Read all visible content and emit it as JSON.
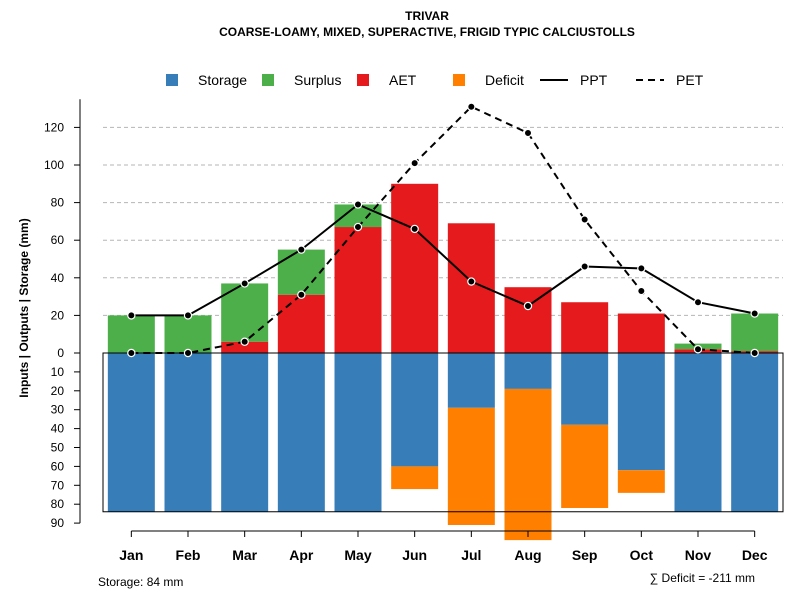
{
  "chart_data": {
    "type": "bar",
    "title": "TRIVAR",
    "subtitle": "COARSE-LOAMY, MIXED, SUPERACTIVE, FRIGID TYPIC CALCIUSTOLLS",
    "ylabel": "Inputs | Outputs | Storage    (mm)",
    "categories": [
      "Jan",
      "Feb",
      "Mar",
      "Apr",
      "May",
      "Jun",
      "Jul",
      "Aug",
      "Sep",
      "Oct",
      "Nov",
      "Dec"
    ],
    "upper_ylim": [
      0,
      130
    ],
    "upper_ticks": [
      "0",
      "20",
      "40",
      "60",
      "80",
      "100",
      "120"
    ],
    "lower_ylim": [
      0,
      90
    ],
    "lower_ticks": [
      "0",
      "10",
      "20",
      "30",
      "40",
      "50",
      "60",
      "70",
      "80",
      "90"
    ],
    "series": [
      {
        "name": "Storage",
        "color": "#377EB8",
        "panel": "lower",
        "values": [
          84,
          84,
          84,
          84,
          84,
          60,
          29,
          19,
          38,
          62,
          84,
          84
        ]
      },
      {
        "name": "Surplus",
        "color": "#4DAF4A",
        "panel": "upper",
        "values": [
          20,
          20,
          31,
          24,
          12,
          0,
          0,
          0,
          0,
          0,
          3,
          20
        ]
      },
      {
        "name": "AET",
        "color": "#E41A1C",
        "panel": "upper",
        "values": [
          0,
          0,
          6,
          31,
          67,
          90,
          69,
          35,
          27,
          21,
          2,
          1
        ]
      },
      {
        "name": "Deficit",
        "color": "#FF7F00",
        "panel": "lower",
        "values": [
          0,
          0,
          0,
          0,
          0,
          12,
          62,
          80,
          44,
          12,
          0,
          0
        ]
      },
      {
        "name": "PPT",
        "color": "#000000",
        "style": "solid",
        "panel": "upper",
        "values": [
          20,
          20,
          37,
          55,
          79,
          66,
          38,
          25,
          46,
          45,
          27,
          21
        ]
      },
      {
        "name": "PET",
        "color": "#000000",
        "style": "dashed",
        "panel": "upper",
        "values": [
          0,
          0,
          6,
          31,
          67,
          101,
          131,
          117,
          71,
          33,
          2,
          0
        ]
      }
    ],
    "storage_capacity": 84,
    "legend_position": "top",
    "grid": true
  },
  "footer": {
    "storage_text": "Storage: 84 mm",
    "deficit_text": "∑ Deficit = -211 mm"
  }
}
